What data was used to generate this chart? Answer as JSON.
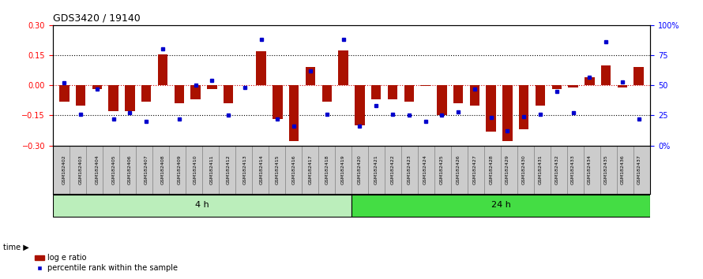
{
  "title": "GDS3420 / 19140",
  "samples": [
    "GSM182402",
    "GSM182403",
    "GSM182404",
    "GSM182405",
    "GSM182406",
    "GSM182407",
    "GSM182408",
    "GSM182409",
    "GSM182410",
    "GSM182411",
    "GSM182412",
    "GSM182413",
    "GSM182414",
    "GSM182415",
    "GSM182416",
    "GSM182417",
    "GSM182418",
    "GSM182419",
    "GSM182420",
    "GSM182421",
    "GSM182422",
    "GSM182423",
    "GSM182424",
    "GSM182425",
    "GSM182426",
    "GSM182427",
    "GSM182428",
    "GSM182429",
    "GSM182430",
    "GSM182431",
    "GSM182432",
    "GSM182433",
    "GSM182434",
    "GSM182435",
    "GSM182436",
    "GSM182437"
  ],
  "log_e_ratio": [
    -0.08,
    -0.1,
    -0.02,
    -0.13,
    -0.13,
    -0.08,
    0.155,
    -0.09,
    -0.07,
    -0.02,
    -0.09,
    0.0,
    0.17,
    -0.17,
    -0.28,
    0.09,
    -0.08,
    0.175,
    -0.2,
    -0.07,
    -0.07,
    -0.08,
    -0.005,
    -0.15,
    -0.09,
    -0.1,
    -0.23,
    -0.28,
    -0.22,
    -0.1,
    -0.02,
    -0.01,
    0.04,
    0.1,
    -0.01,
    0.09
  ],
  "percentile_rank": [
    52,
    26,
    47,
    22,
    27,
    20,
    80,
    22,
    50,
    54,
    25,
    48,
    88,
    22,
    16,
    62,
    26,
    88,
    16,
    33,
    26,
    25,
    20,
    25,
    28,
    47,
    23,
    12,
    24,
    26,
    45,
    27,
    57,
    86,
    53,
    22
  ],
  "group1_count": 18,
  "group2_count": 18,
  "group_labels": [
    "4 h",
    "24 h"
  ],
  "group1_color": "#BBEEBB",
  "group2_color": "#44DD44",
  "ylim": [
    -0.3,
    0.3
  ],
  "yticks_left": [
    -0.3,
    -0.15,
    0.0,
    0.15,
    0.3
  ],
  "yticks_right": [
    0,
    25,
    50,
    75,
    100
  ],
  "bar_color": "#AA1100",
  "dot_color": "#0000CC",
  "bg_color": "#FFFFFF",
  "zero_line_color": "#CC0000",
  "legend_red_label": "log e ratio",
  "legend_blue_label": "percentile rank within the sample",
  "time_label": "time",
  "xticklabel_bg": "#CCCCCC",
  "xticklabel_border": "#999999"
}
